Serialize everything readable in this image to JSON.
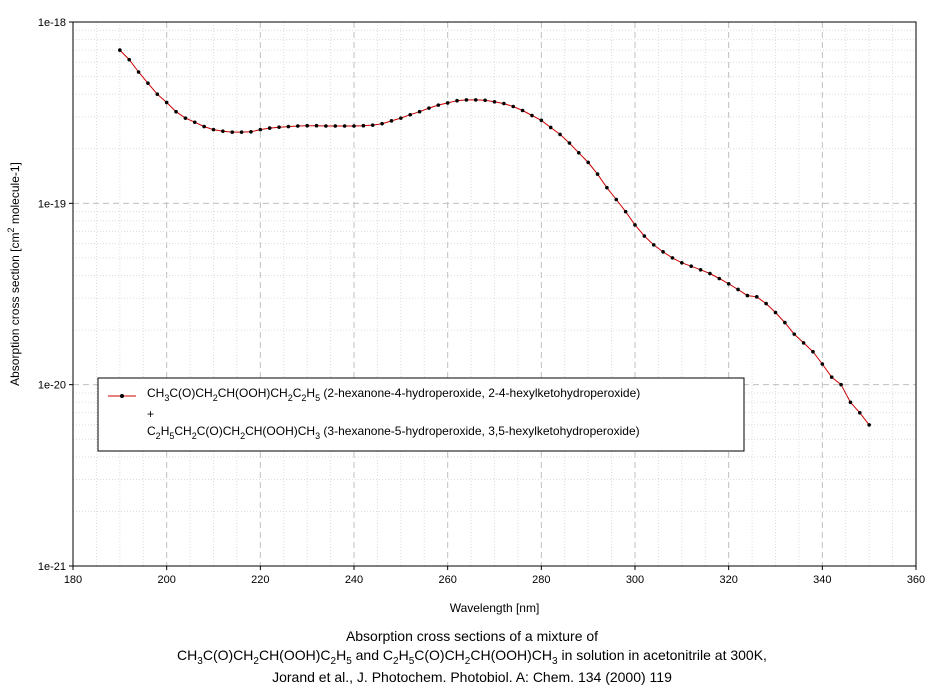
{
  "chart_data": {
    "type": "line",
    "xlabel": "Wavelength [nm]",
    "ylabel_parts": [
      "Absorption cross section [cm",
      "2",
      "   molecule-1]"
    ],
    "xlim": [
      180,
      360
    ],
    "ylim": [
      1e-21,
      1e-18
    ],
    "y_scale": "log",
    "x_ticks": [
      180,
      200,
      220,
      240,
      260,
      280,
      300,
      320,
      340,
      360
    ],
    "x_tick_labels": [
      "180",
      "200",
      "220",
      "240",
      "260",
      "280",
      "300",
      "320",
      "340",
      "360"
    ],
    "y_ticks": [
      1e-21,
      1e-20,
      1e-19,
      1e-18
    ],
    "y_tick_labels": [
      "1e-21",
      "1e-20",
      "1e-19",
      "1e-18"
    ],
    "grid": true,
    "legend_position": "lower-left",
    "series_color": "#cc0000",
    "marker_color": "#000000",
    "legend": {
      "line1": [
        {
          "t": "CH"
        },
        {
          "t": "3",
          "sub": true
        },
        {
          "t": "C(O)CH"
        },
        {
          "t": "2",
          "sub": true
        },
        {
          "t": "CH(OOH)CH"
        },
        {
          "t": "2",
          "sub": true
        },
        {
          "t": "C"
        },
        {
          "t": "2",
          "sub": true
        },
        {
          "t": "H"
        },
        {
          "t": "5",
          "sub": true
        },
        {
          "t": " (2-hexanone-4-hydroperoxide, 2-4-hexylketohydroperoxide)"
        }
      ],
      "plus": "+",
      "line2": [
        {
          "t": "C"
        },
        {
          "t": "2",
          "sub": true
        },
        {
          "t": "H"
        },
        {
          "t": "5",
          "sub": true
        },
        {
          "t": "CH"
        },
        {
          "t": "2",
          "sub": true
        },
        {
          "t": "C(O)CH"
        },
        {
          "t": "2",
          "sub": true
        },
        {
          "t": "CH(OOH)CH"
        },
        {
          "t": "3",
          "sub": true
        },
        {
          "t": " (3-hexanone-5-hydroperoxide, 3,5-hexylketohydroperoxide)"
        }
      ]
    },
    "x": [
      190,
      192,
      194,
      196,
      198,
      200,
      202,
      204,
      206,
      208,
      210,
      212,
      214,
      216,
      218,
      220,
      222,
      224,
      226,
      228,
      230,
      232,
      234,
      236,
      238,
      240,
      242,
      244,
      246,
      248,
      250,
      252,
      254,
      256,
      258,
      260,
      262,
      264,
      266,
      268,
      270,
      272,
      274,
      276,
      278,
      280,
      282,
      284,
      286,
      288,
      290,
      292,
      294,
      296,
      298,
      300,
      302,
      304,
      306,
      308,
      310,
      312,
      314,
      316,
      318,
      320,
      322,
      324,
      326,
      328,
      330,
      332,
      334,
      336,
      338,
      340,
      342,
      344,
      346,
      348,
      350
    ],
    "y": [
      7e-19,
      6.2e-19,
      5.3e-19,
      4.6e-19,
      4e-19,
      3.6e-19,
      3.2e-19,
      2.95e-19,
      2.8e-19,
      2.65e-19,
      2.55e-19,
      2.5e-19,
      2.47e-19,
      2.47e-19,
      2.48e-19,
      2.55e-19,
      2.6e-19,
      2.63e-19,
      2.65e-19,
      2.67e-19,
      2.68e-19,
      2.68e-19,
      2.67e-19,
      2.67e-19,
      2.67e-19,
      2.67e-19,
      2.68e-19,
      2.7e-19,
      2.75e-19,
      2.85e-19,
      2.95e-19,
      3.08e-19,
      3.2e-19,
      3.35e-19,
      3.48e-19,
      3.58e-19,
      3.68e-19,
      3.72e-19,
      3.72e-19,
      3.7e-19,
      3.63e-19,
      3.55e-19,
      3.42e-19,
      3.25e-19,
      3.05e-19,
      2.87e-19,
      2.62e-19,
      2.4e-19,
      2.15e-19,
      1.9e-19,
      1.68e-19,
      1.45e-19,
      1.22e-19,
      1.05e-19,
      9e-20,
      7.6e-20,
      6.6e-20,
      5.9e-20,
      5.4e-20,
      5e-20,
      4.7e-20,
      4.5e-20,
      4.3e-20,
      4.1e-20,
      3.85e-20,
      3.6e-20,
      3.35e-20,
      3.1e-20,
      3.05e-20,
      2.8e-20,
      2.5e-20,
      2.2e-20,
      1.9e-20,
      1.7e-20,
      1.52e-20,
      1.3e-20,
      1.1e-20,
      1e-20,
      8e-21,
      7e-21,
      6e-21
    ]
  },
  "caption": {
    "line1": "Absorption cross sections of a mixture of",
    "line2_parts": [
      {
        "t": "CH"
      },
      {
        "t": "3",
        "sub": true
      },
      {
        "t": "C(O)CH"
      },
      {
        "t": "2",
        "sub": true
      },
      {
        "t": "CH(OOH)C"
      },
      {
        "t": "2",
        "sub": true
      },
      {
        "t": "H"
      },
      {
        "t": "5",
        "sub": true
      },
      {
        "t": " and C"
      },
      {
        "t": "2",
        "sub": true
      },
      {
        "t": "H"
      },
      {
        "t": "5",
        "sub": true
      },
      {
        "t": "C(O)CH"
      },
      {
        "t": "2",
        "sub": true
      },
      {
        "t": "CH(OOH)CH"
      },
      {
        "t": "3",
        "sub": true
      },
      {
        "t": " in solution in acetonitrile at 300K,"
      }
    ],
    "line3": "Jorand et al., J. Photochem. Photobiol. A: Chem. 134 (2000) 119"
  }
}
